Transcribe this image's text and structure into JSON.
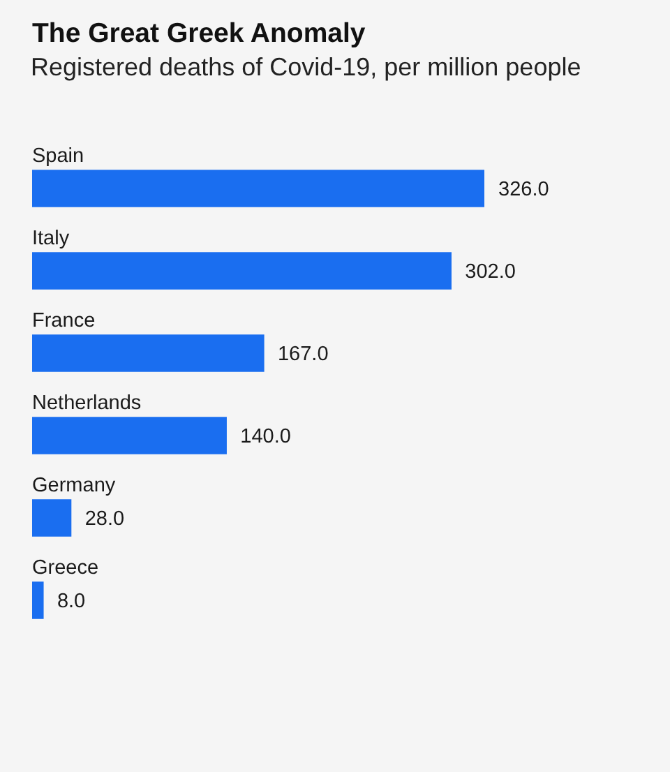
{
  "chart_data": {
    "type": "bar",
    "orientation": "horizontal",
    "title": "The Great Greek Anomaly",
    "subtitle": "Registered deaths of Covid-19, per million people",
    "categories": [
      "Spain",
      "Italy",
      "France",
      "Netherlands",
      "Germany",
      "Greece"
    ],
    "values": [
      326,
      302,
      167,
      140,
      28,
      8
    ],
    "value_labels": [
      "326.0",
      "302.0",
      "167.0",
      "140.0",
      "28.0",
      "8.0"
    ],
    "color": "#1a6ef0"
  }
}
